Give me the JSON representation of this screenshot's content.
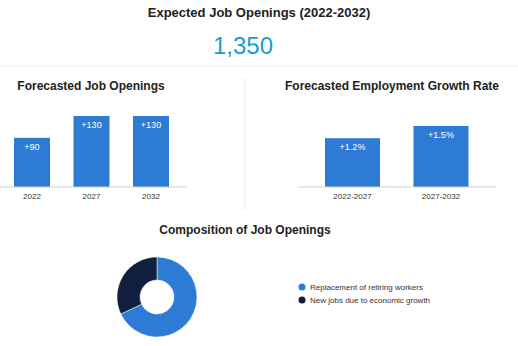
{
  "header": {
    "title": "Expected Job Openings (2022-2032)",
    "value": "1,350"
  },
  "chart_data": [
    {
      "type": "bar",
      "title": "Forecasted Job Openings",
      "categories": [
        "2022",
        "2027",
        "2032"
      ],
      "values": [
        90,
        130,
        130
      ],
      "value_labels": [
        "+90",
        "+130",
        "+130"
      ],
      "color": "#2e7bd6",
      "ylim": [
        0,
        130
      ],
      "data_labels": true,
      "tick_labels": "x"
    },
    {
      "type": "bar",
      "title": "Forecasted Employment Growth Rate",
      "categories": [
        "2022-2027",
        "2027-2032"
      ],
      "values": [
        1.2,
        1.5
      ],
      "value_labels": [
        "+1.2%",
        "+1.5%"
      ],
      "color": "#2e7bd6",
      "ylim": [
        0,
        1.5
      ],
      "data_labels": true,
      "tick_labels": "x"
    },
    {
      "type": "pie",
      "title": "Composition of Job Openings",
      "categories": [
        "Replacement of retiring workers",
        "New jobs due to economic growth"
      ],
      "values": [
        68,
        32
      ],
      "colors": [
        "#2e7bd6",
        "#0f1f3d"
      ],
      "legend": "right"
    }
  ]
}
